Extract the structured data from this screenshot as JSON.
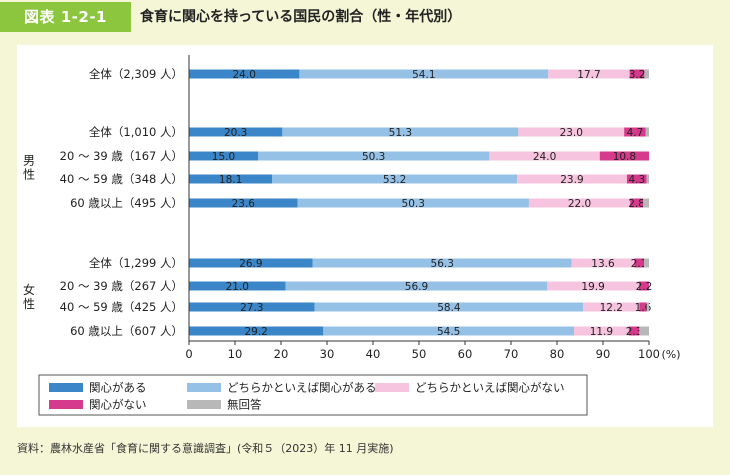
{
  "header": {
    "badge": "図表 1-2-1",
    "title": "食育に関心を持っている国民の割合（性・年代別）"
  },
  "colors": {
    "very_interested": "#3a86c8",
    "somewhat_interested": "#96c1e6",
    "somewhat_not": "#f6c4df",
    "not_interested": "#d63a8c",
    "no_answer": "#b8b8b8",
    "badge": "#8cc63e",
    "page_bg": "#f4f6d6"
  },
  "chart_data": {
    "type": "bar",
    "orientation": "horizontal",
    "stacked": true,
    "title": "食育に関心を持っている国民の割合（性・年代別）",
    "xlim": [
      0,
      100
    ],
    "xticks": [
      "0",
      "10",
      "20",
      "30",
      "40",
      "50",
      "60",
      "70",
      "80",
      "90",
      "100"
    ],
    "xunit": "(%)",
    "groups": [
      {
        "label": "",
        "rows": [
          0
        ]
      },
      {
        "label": "男性",
        "rows": [
          1,
          2,
          3,
          4
        ]
      },
      {
        "label": "女性",
        "rows": [
          5,
          6,
          7,
          8
        ]
      }
    ],
    "categories": [
      "全体（2,309 人）",
      "全体（1,010 人）",
      "20 ～ 39 歳（167 人）",
      "40 ～ 59 歳（348 人）",
      "60 歳以上（495 人）",
      "全体（1,299 人）",
      "20 ～ 39 歳（267 人）",
      "40 ～ 59 歳（425 人）",
      "60 歳以上（607 人）"
    ],
    "series": [
      {
        "name": "関心がある",
        "values": [
          24.0,
          20.3,
          15.0,
          18.1,
          23.6,
          26.9,
          21.0,
          27.3,
          29.2
        ],
        "labels": [
          "24.0",
          "20.3",
          "15.0",
          "18.1",
          "23.6",
          "26.9",
          "21.0",
          "27.3",
          "29.2"
        ]
      },
      {
        "name": "どちらかといえば関心がある",
        "values": [
          54.1,
          51.3,
          50.3,
          53.2,
          50.3,
          56.3,
          56.9,
          58.4,
          54.5
        ],
        "labels": [
          "54.1",
          "51.3",
          "50.3",
          "53.2",
          "50.3",
          "56.3",
          "56.9",
          "58.4",
          "54.5"
        ]
      },
      {
        "name": "どちらかといえば関心がない",
        "values": [
          17.7,
          23.0,
          24.0,
          23.9,
          22.0,
          13.6,
          19.9,
          12.2,
          11.9
        ],
        "labels": [
          "17.7",
          "23.0",
          "24.0",
          "23.9",
          "22.0",
          "13.6",
          "19.9",
          "12.2",
          "11.9"
        ]
      },
      {
        "name": "関心がない",
        "values": [
          3.2,
          4.7,
          10.8,
          4.3,
          2.8,
          2.1,
          2.2,
          1.6,
          2.3
        ],
        "labels": [
          "3.2",
          "4.7",
          "10.8",
          "4.3",
          "2.8",
          "2.1",
          "2.2",
          "1.6",
          "2.3"
        ]
      },
      {
        "name": "無回答",
        "values": [
          1.0,
          0.7,
          0.0,
          0.5,
          1.3,
          1.1,
          0.0,
          0.5,
          2.1
        ],
        "labels": []
      }
    ],
    "legend": {
      "position": "bottom-left",
      "entries": [
        "関心がある",
        "どちらかといえば関心がある",
        "どちらかといえば関心がない",
        "関心がない",
        "無回答"
      ]
    }
  },
  "footer": {
    "source": "資料：農林水産省「食育に関する意識調査」(令和５（2023）年 11 月実施)"
  }
}
